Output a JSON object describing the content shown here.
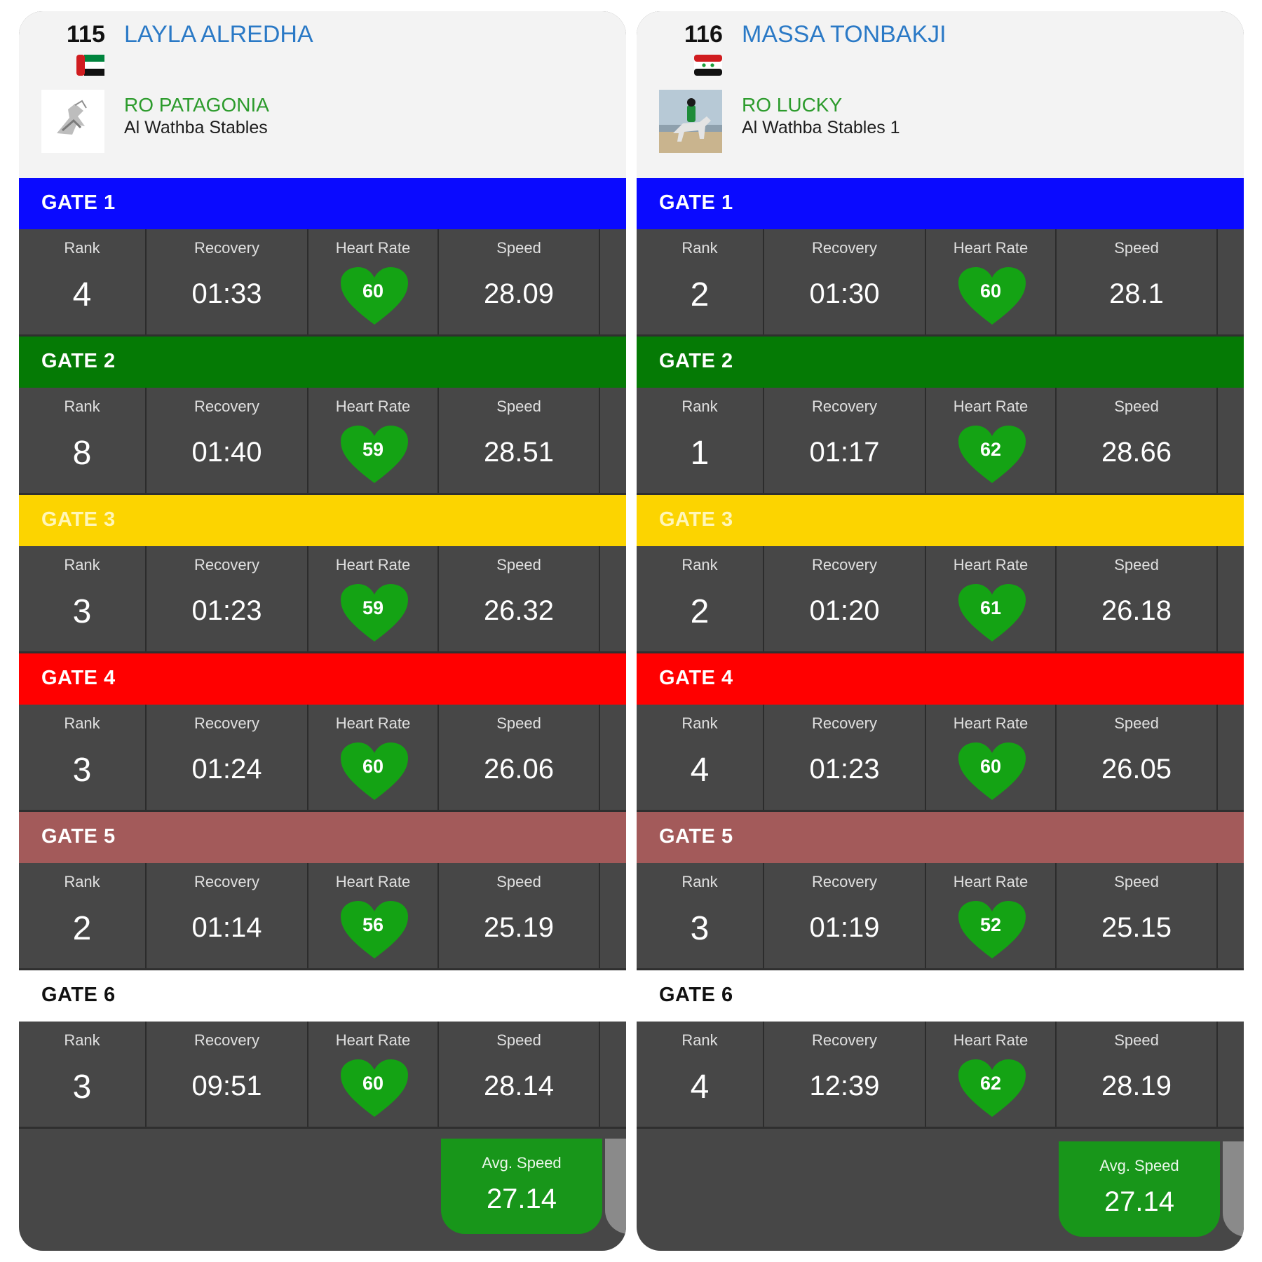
{
  "labels": {
    "rank": "Rank",
    "recovery": "Recovery",
    "heart_rate": "Heart Rate",
    "speed": "Speed",
    "avg_speed": "Avg. Speed"
  },
  "colors": {
    "gate1": "#0a0aff",
    "gate2": "#057a05",
    "gate3": "#fcd400",
    "gate4": "#ff0000",
    "gate5": "#a35a5a",
    "gate6": "#ffffff",
    "heart": "#14a314",
    "avg": "#18961a"
  },
  "riders": [
    {
      "bib": "115",
      "name": "LAYLA ALREDHA",
      "flag": "uae-flag",
      "horse": "RO PATAGONIA",
      "stable": "Al Wathba Stables",
      "avg_speed": "27.14",
      "gates": [
        {
          "title": "GATE 1",
          "rank": "4",
          "recovery": "01:33",
          "heart_rate": "60",
          "speed": "28.09"
        },
        {
          "title": "GATE 2",
          "rank": "8",
          "recovery": "01:40",
          "heart_rate": "59",
          "speed": "28.51"
        },
        {
          "title": "GATE 3",
          "rank": "3",
          "recovery": "01:23",
          "heart_rate": "59",
          "speed": "26.32"
        },
        {
          "title": "GATE 4",
          "rank": "3",
          "recovery": "01:24",
          "heart_rate": "60",
          "speed": "26.06"
        },
        {
          "title": "GATE 5",
          "rank": "2",
          "recovery": "01:14",
          "heart_rate": "56",
          "speed": "25.19"
        },
        {
          "title": "GATE 6",
          "rank": "3",
          "recovery": "09:51",
          "heart_rate": "60",
          "speed": "28.14"
        }
      ]
    },
    {
      "bib": "116",
      "name": "MASSA TONBAKJI",
      "flag": "syria-flag",
      "horse": "RO LUCKY",
      "stable": "Al Wathba Stables 1",
      "avg_speed": "27.14",
      "gates": [
        {
          "title": "GATE 1",
          "rank": "2",
          "recovery": "01:30",
          "heart_rate": "60",
          "speed": "28.1"
        },
        {
          "title": "GATE 2",
          "rank": "1",
          "recovery": "01:17",
          "heart_rate": "62",
          "speed": "28.66"
        },
        {
          "title": "GATE 3",
          "rank": "2",
          "recovery": "01:20",
          "heart_rate": "61",
          "speed": "26.18"
        },
        {
          "title": "GATE 4",
          "rank": "4",
          "recovery": "01:23",
          "heart_rate": "60",
          "speed": "26.05"
        },
        {
          "title": "GATE 5",
          "rank": "3",
          "recovery": "01:19",
          "heart_rate": "52",
          "speed": "25.15"
        },
        {
          "title": "GATE 6",
          "rank": "4",
          "recovery": "12:39",
          "heart_rate": "62",
          "speed": "28.19"
        }
      ]
    }
  ]
}
